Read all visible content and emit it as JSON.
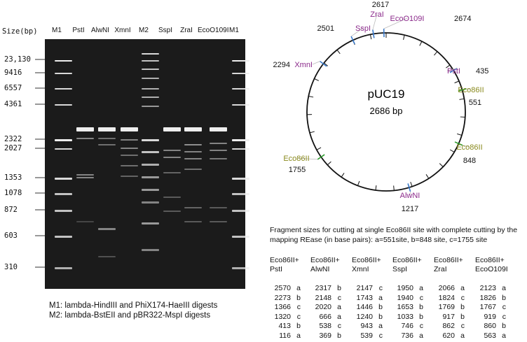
{
  "gel": {
    "size_axis_label": "Size(bp)",
    "lanes": [
      "M1",
      "PstI",
      "AlwNI",
      "XmnI",
      "M2",
      "SspI",
      "ZraI",
      "EcoO109I",
      "M1"
    ],
    "size_markers": [
      "23,130",
      "9416",
      "6557",
      "4361",
      "2322",
      "2027",
      "1353",
      "1078",
      "872",
      "603",
      "310"
    ],
    "caption_1": "M1: lambda-HindIII and PhiX174-HaeIII digests",
    "caption_2": "M2: lambda-BstEII and pBR322-MspI digests"
  },
  "plasmid": {
    "name": "pUC19",
    "size": "2686 bp",
    "sites": [
      {
        "label": "ZraI",
        "position": "2617",
        "color": "#8b2a8b"
      },
      {
        "label": "EcoO109I",
        "position": "2674",
        "color": "#8b2a8b"
      },
      {
        "label": "SspI",
        "position": "2501",
        "color": "#8b2a8b"
      },
      {
        "label": "XmnI",
        "position": "2294",
        "color": "#8b2a8b"
      },
      {
        "label": "PstI",
        "position": "435",
        "color": "#8b2a8b"
      },
      {
        "label": "Eco86II",
        "position": "551",
        "color": "#8a8a1e"
      },
      {
        "label": "Eco86II",
        "position": "848",
        "color": "#8a8a1e"
      },
      {
        "label": "Eco86II",
        "position": "1755",
        "color": "#8a8a1e"
      },
      {
        "label": "AlwNI",
        "position": "1217",
        "color": "#8b2a8b"
      }
    ]
  },
  "fragments": {
    "title": "Fragment sizes for cutting at single Eco86II site with complete cutting by the mapping REase (in base pairs): a=551site, b=848 site, c=1755 site",
    "columns": [
      {
        "header1": "Eco86II+",
        "header2": "PstI",
        "rows": [
          [
            "2570",
            "a"
          ],
          [
            "2273",
            "b"
          ],
          [
            "1366",
            "c"
          ],
          [
            "1320",
            "c"
          ],
          [
            "413",
            "b"
          ],
          [
            "116",
            "a"
          ]
        ]
      },
      {
        "header1": "Eco86II+",
        "header2": "AlwNI",
        "rows": [
          [
            "2317",
            "b"
          ],
          [
            "2148",
            "c"
          ],
          [
            "2020",
            "a"
          ],
          [
            "666",
            "a"
          ],
          [
            "538",
            "c"
          ],
          [
            "369",
            "b"
          ]
        ]
      },
      {
        "header1": "Eco86II+",
        "header2": "XmnI",
        "rows": [
          [
            "2147",
            "c"
          ],
          [
            "1743",
            "a"
          ],
          [
            "1446",
            "b"
          ],
          [
            "1240",
            "b"
          ],
          [
            "943",
            "a"
          ],
          [
            "539",
            "c"
          ]
        ]
      },
      {
        "header1": "Eco86II+",
        "header2": "SspI",
        "rows": [
          [
            "1950",
            "a"
          ],
          [
            "1940",
            "c"
          ],
          [
            "1653",
            "b"
          ],
          [
            "1033",
            "b"
          ],
          [
            "746",
            "c"
          ],
          [
            "736",
            "a"
          ]
        ]
      },
      {
        "header1": "Eco86II+",
        "header2": "ZraI",
        "rows": [
          [
            "2066",
            "a"
          ],
          [
            "1824",
            "c"
          ],
          [
            "1769",
            "b"
          ],
          [
            "917",
            "b"
          ],
          [
            "862",
            "c"
          ],
          [
            "620",
            "a"
          ]
        ]
      },
      {
        "header1": "Eco86II+",
        "header2": "EcoO109I",
        "rows": [
          [
            "2123",
            "a"
          ],
          [
            "1826",
            "b"
          ],
          [
            "1767",
            "c"
          ],
          [
            "919",
            "c"
          ],
          [
            "860",
            "b"
          ],
          [
            "563",
            "a"
          ]
        ]
      }
    ]
  }
}
